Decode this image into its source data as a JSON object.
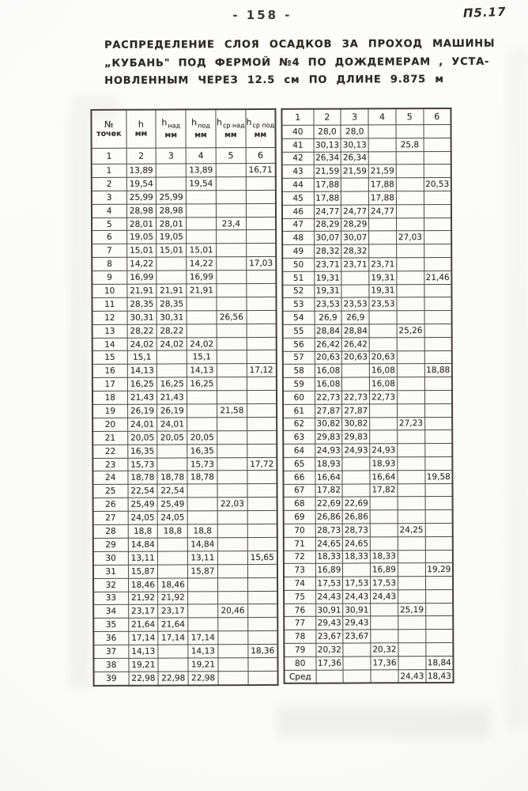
{
  "page": {
    "page_number": "- 158 -",
    "corner_mark": "П5.17",
    "title_line1": "РАСПРЕДЕЛЕНИЕ СЛОЯ ОСАДКОВ ЗА ПРОХОД МАШИНЫ",
    "title_line2": "„КУБАНЬ\" ПОД ФЕРМОЙ №4 ПО ДОЖДЕМЕРАМ , УСТА-",
    "title_line3": "НОВЛЕННЫМ ЧЕРЕЗ 12.5 см ПО ДЛИНЕ 9.875 м"
  },
  "left_table": {
    "headers": [
      {
        "sym": "№",
        "sub": "",
        "unit": "точек"
      },
      {
        "sym": "h",
        "sub": "",
        "unit": "мм"
      },
      {
        "sym": "h",
        "sub": "над",
        "unit": "мм"
      },
      {
        "sym": "h",
        "sub": "под",
        "unit": "мм"
      },
      {
        "sym": "h",
        "sub": "ср над",
        "unit": "мм"
      },
      {
        "sym": "h",
        "sub": "ср под",
        "unit": "мм"
      }
    ],
    "number_rows": [
      [
        "1",
        "2",
        "3",
        "4",
        "5",
        "6"
      ]
    ],
    "rows": [
      [
        "1",
        "13,89",
        "",
        "13,89",
        "",
        "16,71"
      ],
      [
        "2",
        "19,54",
        "",
        "19,54",
        "",
        ""
      ],
      [
        "3",
        "25,99",
        "25,99",
        "",
        "",
        ""
      ],
      [
        "4",
        "28,98",
        "28,98",
        "",
        "",
        ""
      ],
      [
        "5",
        "28,01",
        "28,01",
        "",
        "23,4",
        ""
      ],
      [
        "6",
        "19,05",
        "19,05",
        "",
        "",
        ""
      ],
      [
        "7",
        "15,01",
        "15,01",
        "15,01",
        "",
        ""
      ],
      [
        "8",
        "14,22",
        "",
        "14,22",
        "",
        "17,03"
      ],
      [
        "9",
        "16,99",
        "",
        "16,99",
        "",
        ""
      ],
      [
        "10",
        "21,91",
        "21,91",
        "21,91",
        "",
        ""
      ],
      [
        "11",
        "28,35",
        "28,35",
        "",
        "",
        ""
      ],
      [
        "12",
        "30,31",
        "30,31",
        "",
        "26,56",
        ""
      ],
      [
        "13",
        "28,22",
        "28,22",
        "",
        "",
        ""
      ],
      [
        "14",
        "24,02",
        "24,02",
        "24,02",
        "",
        ""
      ],
      [
        "15",
        "15,1",
        "",
        "15,1",
        "",
        ""
      ],
      [
        "16",
        "14,13",
        "",
        "14,13",
        "",
        "17,12"
      ],
      [
        "17",
        "16,25",
        "16,25",
        "16,25",
        "",
        ""
      ],
      [
        "18",
        "21,43",
        "21,43",
        "",
        "",
        ""
      ],
      [
        "19",
        "26,19",
        "26,19",
        "",
        "21,58",
        ""
      ],
      [
        "20",
        "24,01",
        "24,01",
        "",
        "",
        ""
      ],
      [
        "21",
        "20,05",
        "20,05",
        "20,05",
        "",
        ""
      ],
      [
        "22",
        "16,35",
        "",
        "16,35",
        "",
        ""
      ],
      [
        "23",
        "15,73",
        "",
        "15,73",
        "",
        "17,72"
      ],
      [
        "24",
        "18,78",
        "18,78",
        "18,78",
        "",
        ""
      ],
      [
        "25",
        "22,54",
        "22,54",
        "",
        "",
        ""
      ],
      [
        "26",
        "25,49",
        "25,49",
        "",
        "22,03",
        ""
      ],
      [
        "27",
        "24,05",
        "24,05",
        "",
        "",
        ""
      ],
      [
        "28",
        "18,8",
        "18,8",
        "18,8",
        "",
        ""
      ],
      [
        "29",
        "14,84",
        "",
        "14,84",
        "",
        ""
      ],
      [
        "30",
        "13,11",
        "",
        "13,11",
        "",
        "15,65"
      ],
      [
        "31",
        "15,87",
        "",
        "15,87",
        "",
        ""
      ],
      [
        "32",
        "18,46",
        "18,46",
        "",
        "",
        ""
      ],
      [
        "33",
        "21,92",
        "21,92",
        "",
        "",
        ""
      ],
      [
        "34",
        "23,17",
        "23,17",
        "",
        "20,46",
        ""
      ],
      [
        "35",
        "21,64",
        "21,64",
        "",
        "",
        ""
      ],
      [
        "36",
        "17,14",
        "17,14",
        "17,14",
        "",
        ""
      ],
      [
        "37",
        "14,13",
        "",
        "14,13",
        "",
        "18,36"
      ],
      [
        "38",
        "19,21",
        "",
        "19,21",
        "",
        ""
      ],
      [
        "39",
        "22,98",
        "22,98",
        "22,98",
        "",
        ""
      ]
    ]
  },
  "right_table": {
    "number_rows": [
      [
        "1",
        "2",
        "3",
        "4",
        "5",
        "6"
      ]
    ],
    "rows": [
      [
        "40",
        "28,0",
        "28,0",
        "",
        "",
        ""
      ],
      [
        "41",
        "30,13",
        "30,13",
        "",
        "25,8",
        ""
      ],
      [
        "42",
        "26,34",
        "26,34",
        "",
        "",
        ""
      ],
      [
        "43",
        "21,59",
        "21,59",
        "21,59",
        "",
        ""
      ],
      [
        "44",
        "17,88",
        "",
        "17,88",
        "",
        "20,53"
      ],
      [
        "45",
        "17,88",
        "",
        "17,88",
        "",
        ""
      ],
      [
        "46",
        "24,77",
        "24,77",
        "24,77",
        "",
        ""
      ],
      [
        "47",
        "28,29",
        "28,29",
        "",
        "",
        ""
      ],
      [
        "48",
        "30,07",
        "30,07",
        "",
        "27,03",
        ""
      ],
      [
        "49",
        "28,32",
        "28,32",
        "",
        "",
        ""
      ],
      [
        "50",
        "23,71",
        "23,71",
        "23,71",
        "",
        ""
      ],
      [
        "51",
        "19,31",
        "",
        "19,31",
        "",
        "21,46"
      ],
      [
        "52",
        "19,31",
        "",
        "19,31",
        "",
        ""
      ],
      [
        "53",
        "23,53",
        "23,53",
        "23,53",
        "",
        ""
      ],
      [
        "54",
        "26,9",
        "26,9",
        "",
        "",
        ""
      ],
      [
        "55",
        "28,84",
        "28,84",
        "",
        "25,26",
        ""
      ],
      [
        "56",
        "26,42",
        "26,42",
        "",
        "",
        ""
      ],
      [
        "57",
        "20,63",
        "20,63",
        "20,63",
        "",
        ""
      ],
      [
        "58",
        "16,08",
        "",
        "16,08",
        "",
        "18,88"
      ],
      [
        "59",
        "16,08",
        "",
        "16,08",
        "",
        ""
      ],
      [
        "60",
        "22,73",
        "22,73",
        "22,73",
        "",
        ""
      ],
      [
        "61",
        "27,87",
        "27,87",
        "",
        "",
        ""
      ],
      [
        "62",
        "30,82",
        "30,82",
        "",
        "27,23",
        ""
      ],
      [
        "63",
        "29,83",
        "29,83",
        "",
        "",
        ""
      ],
      [
        "64",
        "24,93",
        "24,93",
        "24,93",
        "",
        ""
      ],
      [
        "65",
        "18,93",
        "",
        "18,93",
        "",
        ""
      ],
      [
        "66",
        "16,64",
        "",
        "16,64",
        "",
        "19,58"
      ],
      [
        "67",
        "17,82",
        "",
        "17,82",
        "",
        ""
      ],
      [
        "68",
        "22,69",
        "22,69",
        "",
        "",
        ""
      ],
      [
        "69",
        "26,86",
        "26,86",
        "",
        "",
        ""
      ],
      [
        "70",
        "28,73",
        "28,73",
        "",
        "24,25",
        ""
      ],
      [
        "71",
        "24,65",
        "24,65",
        "",
        "",
        ""
      ],
      [
        "72",
        "18,33",
        "18,33",
        "18,33",
        "",
        ""
      ],
      [
        "73",
        "16,89",
        "",
        "16,89",
        "",
        "19,29"
      ],
      [
        "74",
        "17,53",
        "17,53",
        "17,53",
        "",
        ""
      ],
      [
        "75",
        "24,43",
        "24,43",
        "24,43",
        "",
        ""
      ],
      [
        "76",
        "30,91",
        "30,91",
        "",
        "25,19",
        ""
      ],
      [
        "77",
        "29,43",
        "29,43",
        "",
        "",
        ""
      ],
      [
        "78",
        "23,67",
        "23,67",
        "",
        "",
        ""
      ],
      [
        "79",
        "20,32",
        "",
        "20,32",
        "",
        ""
      ],
      [
        "80",
        "17,36",
        "",
        "17,36",
        "",
        "18,84"
      ],
      [
        "Сред",
        "",
        "",
        "",
        "24,43",
        "18,43"
      ]
    ]
  }
}
